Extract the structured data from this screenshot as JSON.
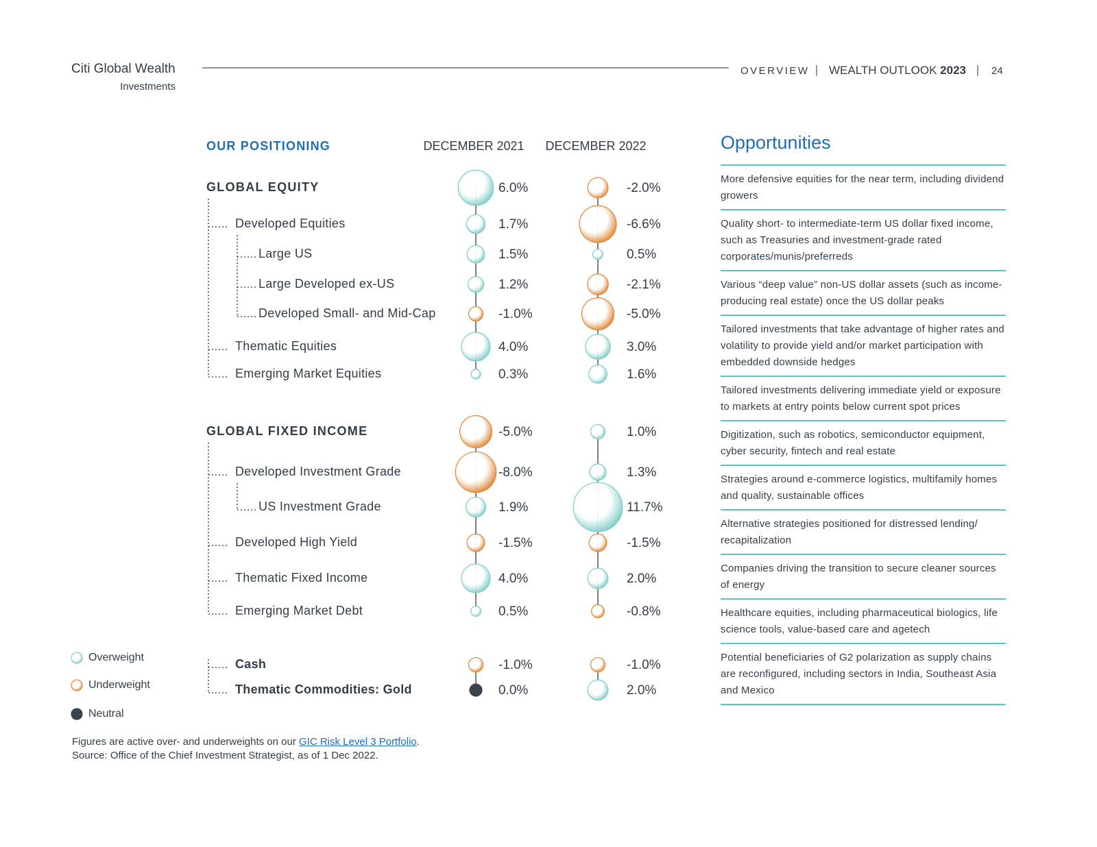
{
  "header": {
    "brand": "Citi Global Wealth",
    "sub": "Investments",
    "section": "OVERVIEW",
    "publication": "WEALTH OUTLOOK",
    "year": "2023",
    "page": "24"
  },
  "positioning": {
    "heading": "OUR POSITIONING",
    "columns": [
      "DECEMBER 2021",
      "DECEMBER 2022"
    ],
    "groups": [
      {
        "label": "GLOBAL EQUITY",
        "values": [
          6.0,
          -2.0
        ],
        "value_labels": [
          "6.0%",
          "-2.0%"
        ],
        "children": [
          {
            "label": "Developed Equities",
            "values": [
              1.7,
              -6.6
            ],
            "value_labels": [
              "1.7%",
              "-6.6%"
            ],
            "children": [
              {
                "label": "Large US",
                "values": [
                  1.5,
                  0.5
                ],
                "value_labels": [
                  "1.5%",
                  "0.5%"
                ]
              },
              {
                "label": "Large Developed ex-US",
                "values": [
                  1.2,
                  -2.1
                ],
                "value_labels": [
                  "1.2%",
                  "-2.1%"
                ]
              },
              {
                "label": "Developed Small- and Mid-Cap",
                "values": [
                  -1.0,
                  -5.0
                ],
                "value_labels": [
                  "-1.0%",
                  "-5.0%"
                ]
              }
            ]
          },
          {
            "label": "Thematic Equities",
            "values": [
              4.0,
              3.0
            ],
            "value_labels": [
              "4.0%",
              "3.0%"
            ]
          },
          {
            "label": "Emerging Market Equities",
            "values": [
              0.3,
              1.6
            ],
            "value_labels": [
              "0.3%",
              "1.6%"
            ]
          }
        ]
      },
      {
        "label": "GLOBAL FIXED INCOME",
        "values": [
          -5.0,
          1.0
        ],
        "value_labels": [
          "-5.0%",
          "1.0%"
        ],
        "children": [
          {
            "label": "Developed Investment Grade",
            "values": [
              -8.0,
              1.3
            ],
            "value_labels": [
              "-8.0%",
              "1.3%"
            ],
            "children": [
              {
                "label": "US Investment Grade",
                "values": [
                  1.9,
                  11.7
                ],
                "value_labels": [
                  "1.9%",
                  "11.7%"
                ]
              }
            ]
          },
          {
            "label": "Developed High Yield",
            "values": [
              -1.5,
              -1.5
            ],
            "value_labels": [
              "-1.5%",
              "-1.5%"
            ]
          },
          {
            "label": "Thematic Fixed Income",
            "values": [
              4.0,
              2.0
            ],
            "value_labels": [
              "4.0%",
              "2.0%"
            ]
          },
          {
            "label": "Emerging Market Debt",
            "values": [
              0.5,
              -0.8
            ],
            "value_labels": [
              "0.5%",
              "-0.8%"
            ]
          }
        ]
      },
      {
        "children": [
          {
            "label": "Cash",
            "values": [
              -1.0,
              -1.0
            ],
            "value_labels": [
              "-1.0%",
              "-1.0%"
            ]
          },
          {
            "label": "Thematic Commodities: Gold",
            "values": [
              0.0,
              2.0
            ],
            "value_labels": [
              "0.0%",
              "2.0%"
            ]
          }
        ]
      }
    ]
  },
  "legend": [
    {
      "name": "Overweight",
      "color": "#7fcdc9"
    },
    {
      "name": "Underweight",
      "color": "#e0893a"
    },
    {
      "name": "Neutral",
      "color": "#3b434d"
    }
  ],
  "opportunities": {
    "title": "Opportunities",
    "items": [
      "More defensive equities for the near term, including dividend growers",
      "Quality short- to intermediate-term US dollar fixed income, such as Treasuries and investment-grade rated corporates/munis/preferreds",
      "Various “deep value” non-US dollar assets (such as income-producing real estate) once the US dollar peaks",
      "Tailored investments that take advantage of higher rates and volatility to provide yield and/or market participation with embedded downside hedges",
      "Tailored investments delivering immediate yield or exposure to markets at entry points below current spot prices",
      "Digitization, such as robotics, semiconductor equipment, cyber security, fintech and real estate",
      "Strategies around e-commerce logistics, multifamily homes and quality, sustainable offices",
      "Alternative strategies positioned for distressed lending/ recapitalization",
      "Companies driving the transition to secure cleaner sources of energy",
      "Healthcare equities, including pharmaceutical biologics, life science tools, value-based care and agetech",
      "Potential beneficiaries of G2 polarization as supply chains are reconfigured, including sectors in India, Southeast Asia and Mexico"
    ]
  },
  "footnote": {
    "text": "Figures are active over- and underweights on our",
    "link": "GIC Risk Level 3 Portfolio",
    "end": ".",
    "source": "Source: Office of the Chief Investment Strategist, as of 1 Dec 2022."
  }
}
